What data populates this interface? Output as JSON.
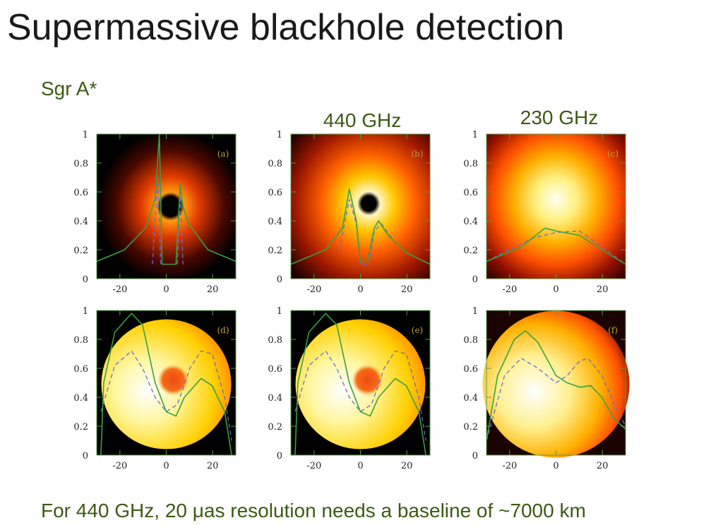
{
  "title": "Supermassive blackhole detection",
  "subtitle": "Sgr A*",
  "column_labels": [
    "440 GHz",
    "230 GHz"
  ],
  "panels": [
    "(a)",
    "(b)",
    "(c)",
    "(d)",
    "(e)",
    "(f)"
  ],
  "axes": {
    "xlim": [
      -30,
      30
    ],
    "ylim": [
      0,
      1
    ],
    "xticks": [
      -20,
      0,
      20
    ],
    "yticks": [
      0,
      0.2,
      0.4,
      0.6,
      0.8,
      1
    ]
  },
  "footer": "For 440 GHz, 20 μas resolution needs a baseline of ~7000 km"
}
